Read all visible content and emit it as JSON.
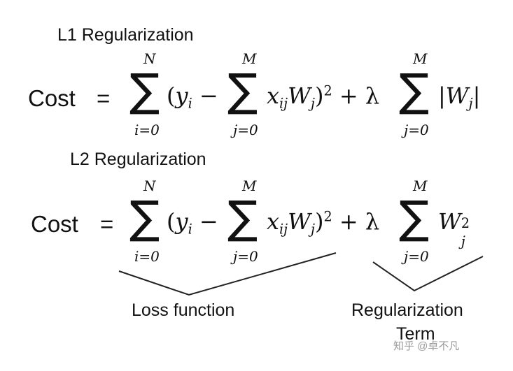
{
  "l1": {
    "heading": "L1 Regularization",
    "cost": "Cost",
    "eq": "=",
    "sum1": {
      "upper": "N",
      "lower": "i=0",
      "symbol": "∑"
    },
    "open_paren": "(",
    "y": "y",
    "y_sub": "i",
    "minus": "−",
    "sum2": {
      "upper": "M",
      "lower": "j=0",
      "symbol": "∑"
    },
    "x": "x",
    "x_sub": "ij",
    "w": "W",
    "w_sub": "j",
    "close_paren": ")",
    "square": "2",
    "plus_lambda": "+ λ",
    "sum3": {
      "upper": "M",
      "lower": "j=0",
      "symbol": "∑"
    },
    "abs_open": "|",
    "abs_w": "W",
    "abs_w_sub": "j",
    "abs_close": "|"
  },
  "l2": {
    "heading": "L2 Regularization",
    "cost": "Cost",
    "eq": "=",
    "sum1": {
      "upper": "N",
      "lower": "i=0",
      "symbol": "∑"
    },
    "open_paren": "(",
    "y": "y",
    "y_sub": "i",
    "minus": "−",
    "sum2": {
      "upper": "M",
      "lower": "j=0",
      "symbol": "∑"
    },
    "x": "x",
    "x_sub": "ij",
    "w": "W",
    "w_sub": "j",
    "close_paren": ")",
    "square": "2",
    "plus_lambda": "+ λ",
    "sum3": {
      "upper": "M",
      "lower": "j=0",
      "symbol": "∑"
    },
    "reg_w": "W",
    "reg_w_sub": "j",
    "reg_w_sup": "2"
  },
  "labels": {
    "loss": "Loss function",
    "reg_line1": "Regularization",
    "reg_line2": "Term"
  },
  "watermark": "知乎 @卓不凡"
}
